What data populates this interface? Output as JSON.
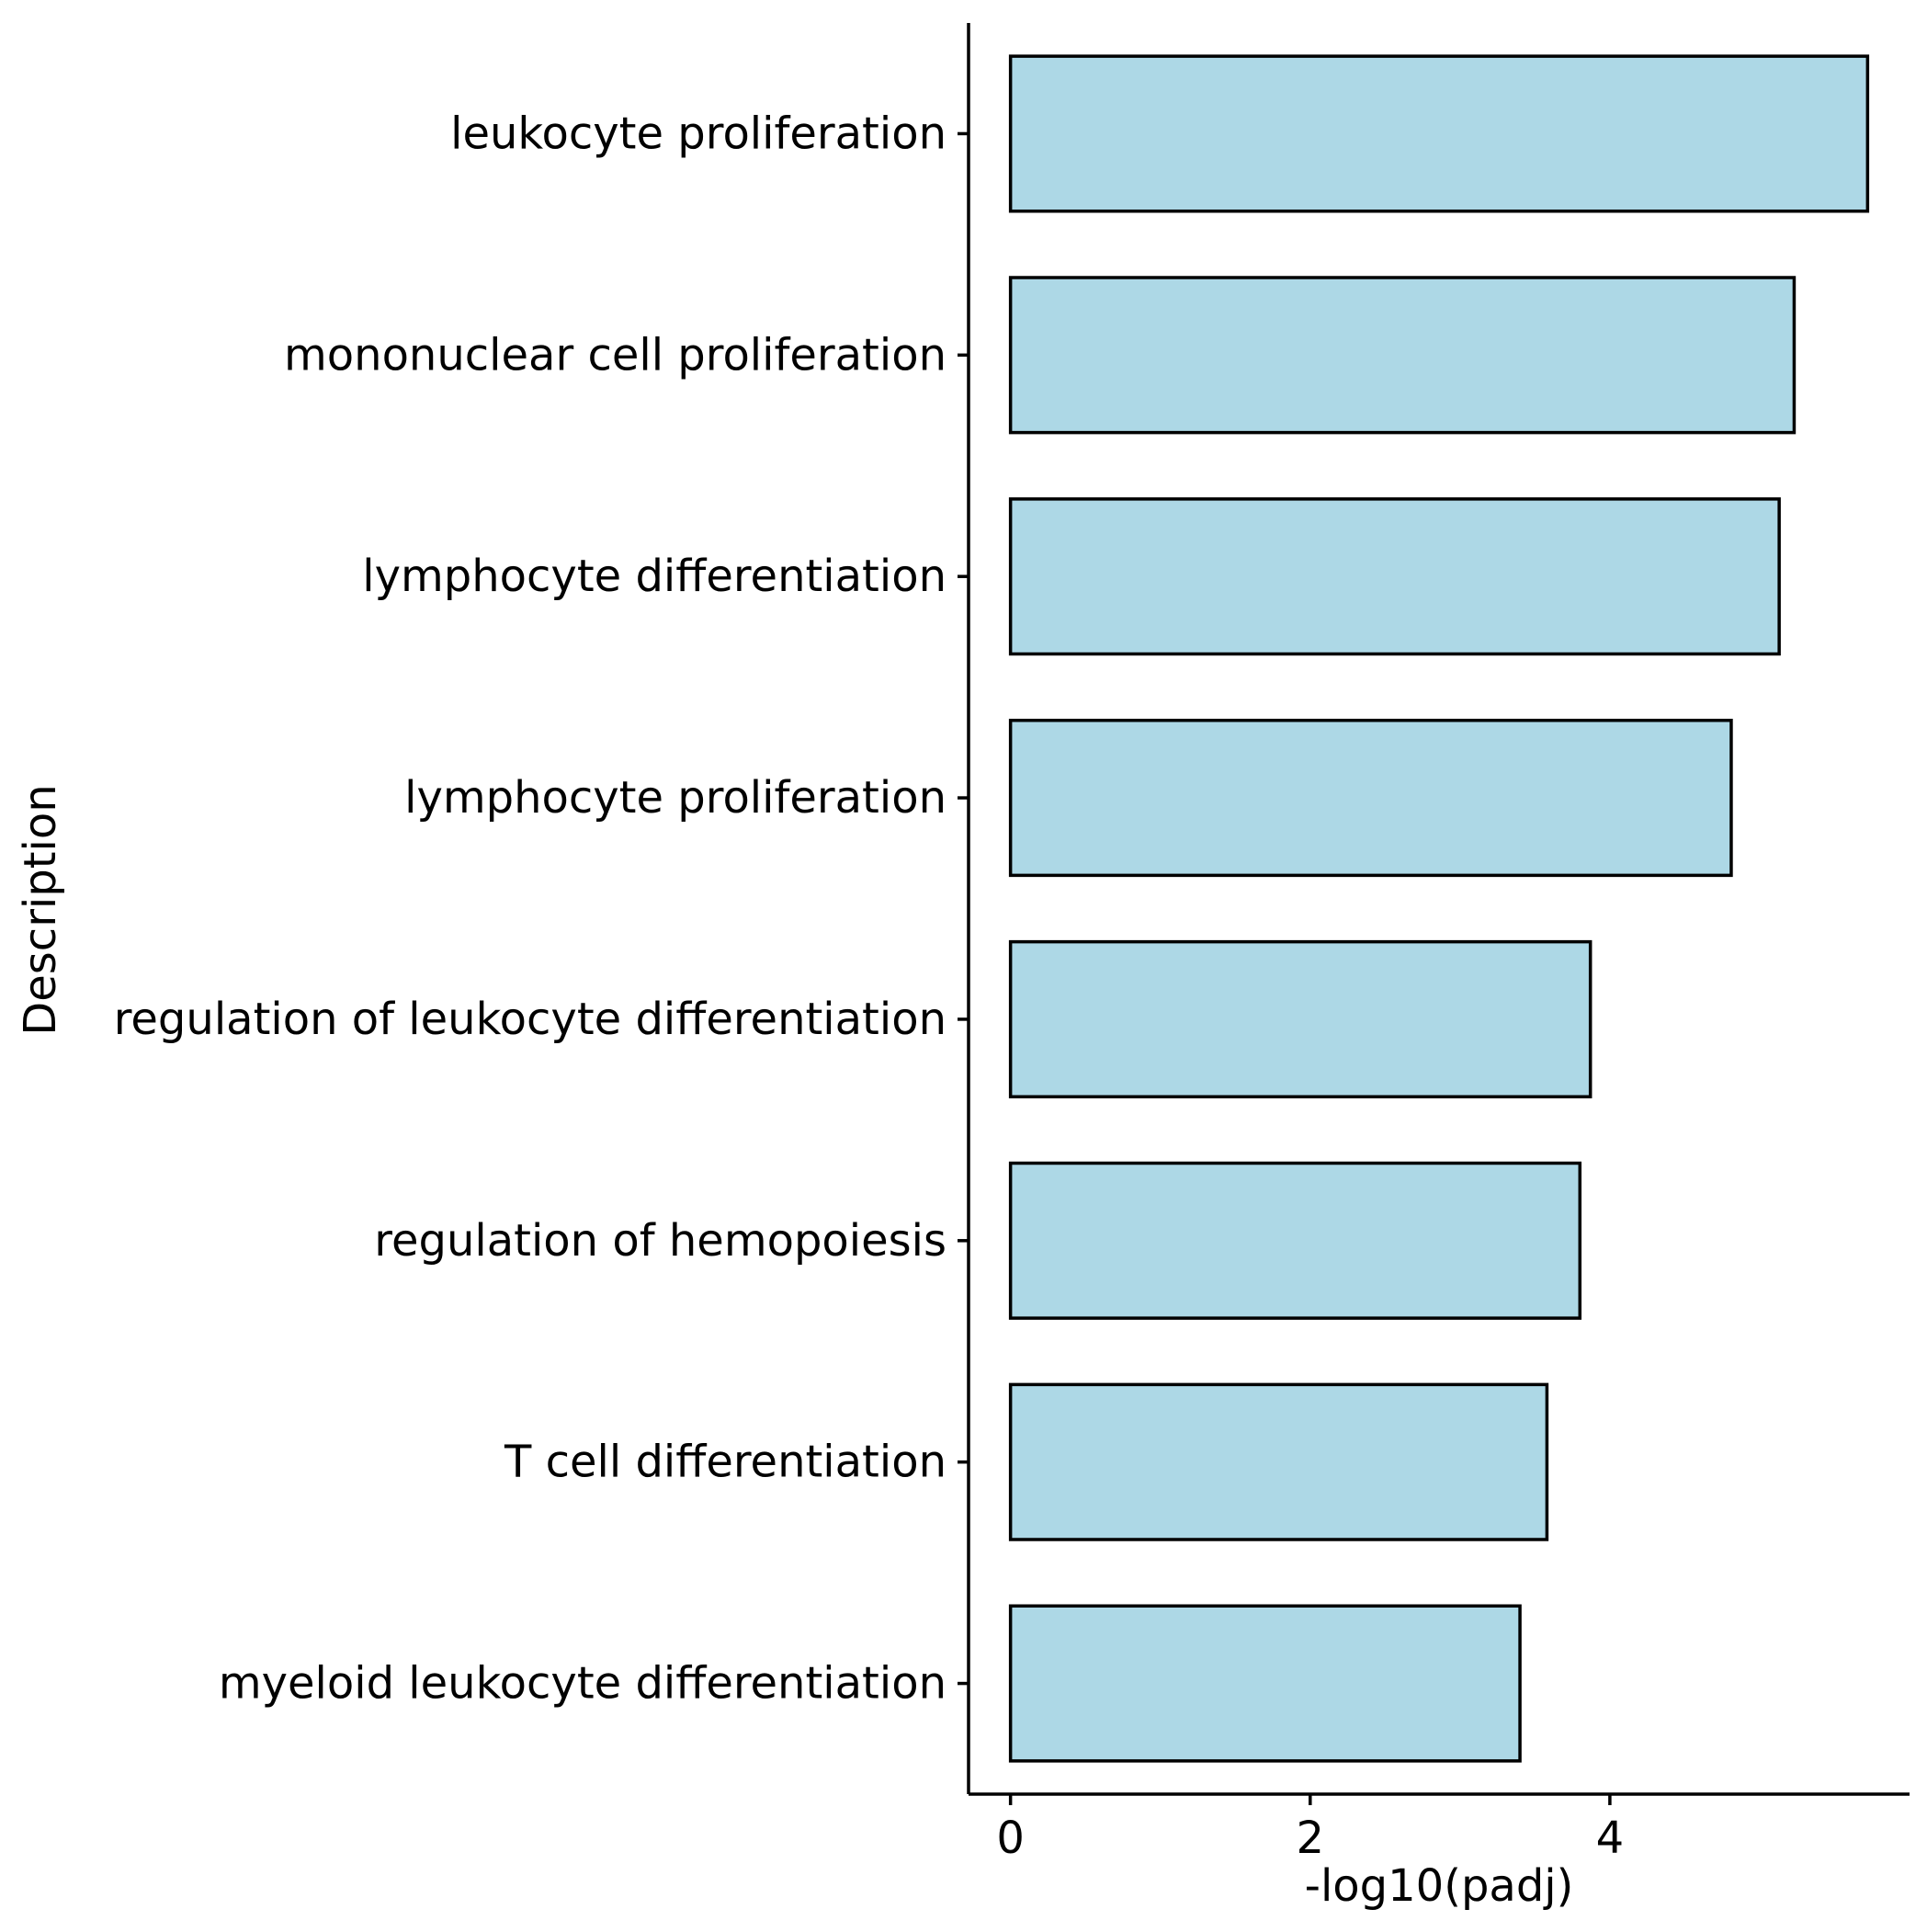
{
  "chart_data": {
    "type": "bar",
    "orientation": "horizontal",
    "categories": [
      "leukocyte proliferation",
      "mononuclear cell proliferation",
      "lymphocyte differentiation",
      "lymphocyte proliferation",
      "regulation of leukocyte differentiation",
      "regulation of hemopoiesis",
      "T cell differentiation",
      "myeloid leukocyte differentiation"
    ],
    "values": [
      5.72,
      5.23,
      5.13,
      4.81,
      3.87,
      3.8,
      3.58,
      3.4
    ],
    "xlabel": "-log10(padj)",
    "ylabel": "Description",
    "xticks": [
      0,
      2,
      4
    ],
    "xlim": [
      -0.28,
      6.0
    ],
    "bar_fill": "#add8e6",
    "bar_stroke": "#000000",
    "grid": false,
    "legend": "none"
  }
}
